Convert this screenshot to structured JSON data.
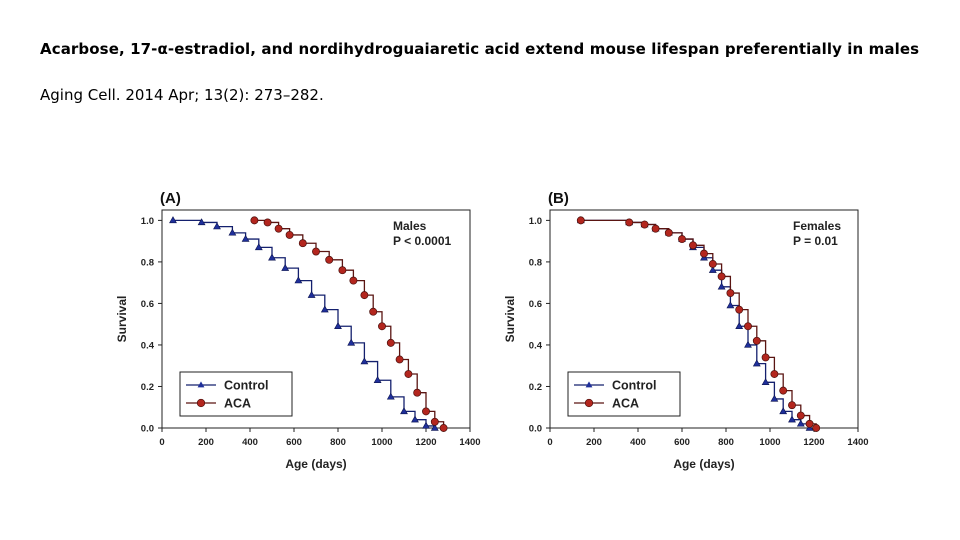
{
  "slide": {
    "title": "Acarbose, 17-α-estradiol, and nordihydroguaiaretic acid extend mouse lifespan preferentially in males",
    "citation": "Aging Cell. 2014 Apr; 13(2): 273–282."
  },
  "colors": {
    "control": "#1f2f9a",
    "aca": "#b3261e",
    "control_line": "#14206e",
    "aca_line": "#5a1512"
  },
  "chart_data": [
    {
      "type": "line",
      "panel_label": "(A)",
      "annotation": [
        "Males",
        "P < 0.0001"
      ],
      "xlabel": "Age (days)",
      "ylabel": "Survival",
      "xlim": [
        0,
        1400
      ],
      "ylim": [
        0,
        1.05
      ],
      "xticks": [
        "0",
        "200",
        "400",
        "600",
        "800",
        "1000",
        "1200",
        "1400"
      ],
      "yticks": [
        "0.0",
        "0.2",
        "0.4",
        "0.6",
        "0.8",
        "1.0"
      ],
      "legend_position": "bottom-left",
      "series": [
        {
          "name": "Control",
          "marker": "triangle",
          "x": [
            50,
            180,
            250,
            320,
            380,
            440,
            500,
            560,
            620,
            680,
            740,
            800,
            860,
            920,
            980,
            1040,
            1100,
            1150,
            1200,
            1240
          ],
          "y": [
            1.0,
            0.99,
            0.97,
            0.94,
            0.91,
            0.87,
            0.82,
            0.77,
            0.71,
            0.64,
            0.57,
            0.49,
            0.41,
            0.32,
            0.23,
            0.15,
            0.08,
            0.04,
            0.01,
            0.0
          ]
        },
        {
          "name": "ACA",
          "marker": "circle",
          "x": [
            420,
            480,
            530,
            580,
            640,
            700,
            760,
            820,
            870,
            920,
            960,
            1000,
            1040,
            1080,
            1120,
            1160,
            1200,
            1240,
            1280
          ],
          "y": [
            1.0,
            0.99,
            0.96,
            0.93,
            0.89,
            0.85,
            0.81,
            0.76,
            0.71,
            0.64,
            0.56,
            0.49,
            0.41,
            0.33,
            0.26,
            0.17,
            0.08,
            0.03,
            0.0
          ]
        }
      ]
    },
    {
      "type": "line",
      "panel_label": "(B)",
      "annotation": [
        "Females",
        "P = 0.01"
      ],
      "xlabel": "Age (days)",
      "ylabel": "Survival",
      "xlim": [
        0,
        1400
      ],
      "ylim": [
        0,
        1.05
      ],
      "xticks": [
        "0",
        "200",
        "400",
        "600",
        "800",
        "1000",
        "1200",
        "1400"
      ],
      "yticks": [
        "0.0",
        "0.2",
        "0.4",
        "0.6",
        "0.8",
        "1.0"
      ],
      "legend_position": "bottom-left",
      "series": [
        {
          "name": "Control",
          "marker": "triangle",
          "x": [
            140,
            360,
            430,
            480,
            540,
            600,
            650,
            700,
            740,
            780,
            820,
            860,
            900,
            940,
            980,
            1020,
            1060,
            1100,
            1140,
            1180
          ],
          "y": [
            1.0,
            0.99,
            0.98,
            0.96,
            0.94,
            0.91,
            0.87,
            0.82,
            0.76,
            0.68,
            0.59,
            0.49,
            0.4,
            0.31,
            0.22,
            0.14,
            0.08,
            0.04,
            0.02,
            0.0
          ]
        },
        {
          "name": "ACA",
          "marker": "circle",
          "x": [
            140,
            360,
            430,
            480,
            540,
            600,
            650,
            700,
            740,
            780,
            820,
            860,
            900,
            940,
            980,
            1020,
            1060,
            1100,
            1140,
            1180,
            1210
          ],
          "y": [
            1.0,
            0.99,
            0.98,
            0.96,
            0.94,
            0.91,
            0.88,
            0.84,
            0.79,
            0.73,
            0.65,
            0.57,
            0.49,
            0.42,
            0.34,
            0.26,
            0.18,
            0.11,
            0.06,
            0.02,
            0.0
          ]
        }
      ]
    }
  ]
}
